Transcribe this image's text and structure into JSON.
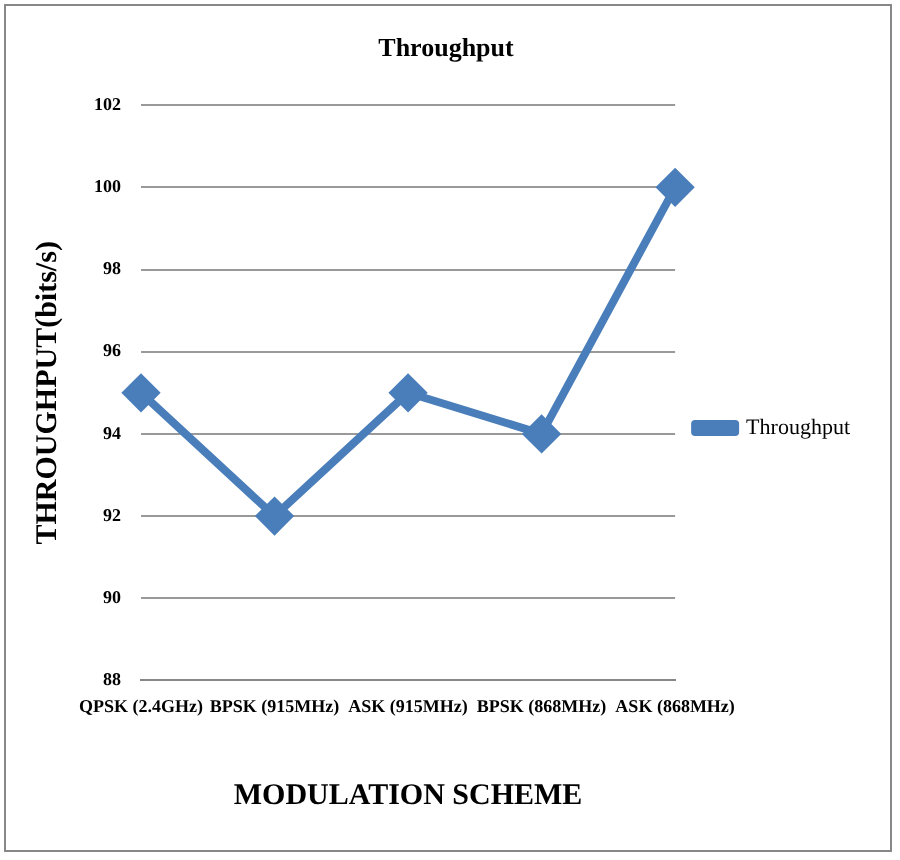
{
  "chart_data": {
    "type": "line",
    "title": "Throughput",
    "xlabel": "MODULATION SCHEME",
    "ylabel": "THROUGHPUT(bits/s)",
    "categories": [
      "QPSK (2.4GHz)",
      "BPSK (915MHz)",
      "ASK (915MHz)",
      "BPSK (868MHz)",
      "ASK (868MHz)"
    ],
    "series": [
      {
        "name": "Throughput",
        "color": "#4a7ebb",
        "values": [
          95,
          92,
          95,
          94,
          100
        ]
      }
    ],
    "ylim": [
      88,
      102
    ],
    "yticks": [
      88,
      90,
      92,
      94,
      96,
      98,
      100,
      102
    ],
    "grid": "y",
    "legend": "right",
    "marker": "diamond",
    "line_style": "solid"
  }
}
